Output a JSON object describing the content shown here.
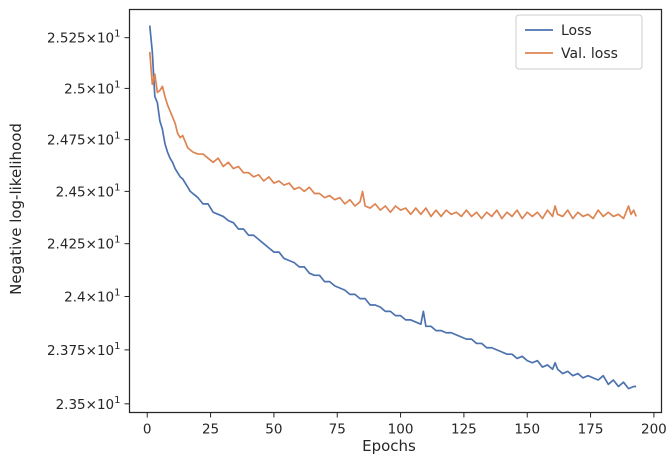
{
  "chart_data": {
    "type": "line",
    "title": "",
    "xlabel": "Epochs",
    "ylabel": "Negative log-likelihood",
    "xlim": [
      -7,
      203
    ],
    "ylim": [
      23.46,
      25.39
    ],
    "yscale": "log",
    "grid": false,
    "legend_position": "top-right",
    "xticks": [
      0,
      25,
      50,
      75,
      100,
      125,
      150,
      175,
      200
    ],
    "xtick_labels": [
      "0",
      "25",
      "50",
      "75",
      "100",
      "125",
      "150",
      "175",
      "200"
    ],
    "yticks": [
      23.5,
      23.75,
      24.0,
      24.25,
      24.5,
      24.75,
      25.0,
      25.25
    ],
    "ytick_labels": [
      {
        "mantissa": "2.35",
        "base": "10",
        "exp": "1"
      },
      {
        "mantissa": "2.375",
        "base": "10",
        "exp": "1"
      },
      {
        "mantissa": "2.4",
        "base": "10",
        "exp": "1"
      },
      {
        "mantissa": "2.425",
        "base": "10",
        "exp": "1"
      },
      {
        "mantissa": "2.45",
        "base": "10",
        "exp": "1"
      },
      {
        "mantissa": "2.475",
        "base": "10",
        "exp": "1"
      },
      {
        "mantissa": "2.5",
        "base": "10",
        "exp": "1"
      },
      {
        "mantissa": "2.525",
        "base": "10",
        "exp": "1"
      }
    ],
    "series": [
      {
        "name": "Loss",
        "color": "#4c72b0",
        "x": [
          1,
          2,
          3,
          4,
          5,
          6,
          7,
          8,
          9,
          10,
          11,
          12,
          13,
          14,
          15,
          16,
          17,
          18,
          19,
          20,
          22,
          24,
          26,
          28,
          30,
          32,
          34,
          36,
          38,
          40,
          42,
          44,
          46,
          48,
          50,
          52,
          54,
          56,
          58,
          60,
          62,
          64,
          66,
          68,
          70,
          72,
          74,
          76,
          78,
          80,
          82,
          84,
          86,
          88,
          90,
          92,
          94,
          96,
          98,
          100,
          102,
          104,
          106,
          108,
          109,
          110,
          112,
          114,
          116,
          118,
          120,
          122,
          124,
          126,
          128,
          130,
          132,
          134,
          136,
          138,
          140,
          142,
          144,
          146,
          148,
          150,
          152,
          154,
          156,
          158,
          160,
          161,
          162,
          164,
          166,
          168,
          170,
          172,
          174,
          176,
          178,
          180,
          182,
          184,
          186,
          188,
          190,
          192,
          193
        ],
        "y": [
          25.31,
          25.18,
          24.96,
          24.93,
          24.84,
          24.8,
          24.73,
          24.69,
          24.66,
          24.64,
          24.61,
          24.59,
          24.57,
          24.56,
          24.54,
          24.52,
          24.5,
          24.49,
          24.48,
          24.47,
          24.44,
          24.44,
          24.4,
          24.39,
          24.38,
          24.36,
          24.35,
          24.32,
          24.32,
          24.29,
          24.29,
          24.27,
          24.25,
          24.23,
          24.21,
          24.21,
          24.18,
          24.17,
          24.16,
          24.14,
          24.14,
          24.11,
          24.1,
          24.1,
          24.07,
          24.07,
          24.05,
          24.04,
          24.03,
          24.01,
          24.01,
          23.99,
          23.99,
          23.96,
          23.96,
          23.95,
          23.93,
          23.93,
          23.91,
          23.91,
          23.89,
          23.89,
          23.88,
          23.87,
          23.93,
          23.86,
          23.86,
          23.84,
          23.84,
          23.83,
          23.83,
          23.82,
          23.81,
          23.8,
          23.8,
          23.78,
          23.78,
          23.76,
          23.76,
          23.75,
          23.74,
          23.73,
          23.73,
          23.71,
          23.72,
          23.7,
          23.69,
          23.7,
          23.67,
          23.68,
          23.66,
          23.69,
          23.66,
          23.64,
          23.65,
          23.63,
          23.64,
          23.62,
          23.63,
          23.62,
          23.61,
          23.63,
          23.59,
          23.61,
          23.58,
          23.6,
          23.57,
          23.58,
          23.58
        ]
      },
      {
        "name": "Val. loss",
        "color": "#dd8452",
        "x": [
          1,
          2,
          3,
          4,
          5,
          6,
          7,
          8,
          9,
          10,
          11,
          12,
          13,
          14,
          15,
          16,
          18,
          20,
          22,
          24,
          26,
          28,
          30,
          32,
          34,
          36,
          38,
          40,
          42,
          44,
          46,
          48,
          50,
          52,
          54,
          56,
          58,
          60,
          62,
          64,
          66,
          68,
          70,
          72,
          74,
          76,
          78,
          80,
          82,
          84,
          85,
          86,
          88,
          90,
          92,
          94,
          96,
          98,
          100,
          102,
          104,
          106,
          108,
          110,
          112,
          114,
          116,
          118,
          120,
          122,
          124,
          126,
          128,
          130,
          132,
          134,
          136,
          138,
          140,
          142,
          144,
          146,
          148,
          150,
          152,
          154,
          156,
          158,
          160,
          161,
          162,
          164,
          166,
          168,
          170,
          172,
          174,
          176,
          178,
          180,
          182,
          184,
          186,
          188,
          190,
          191,
          192,
          193
        ],
        "y": [
          25.18,
          25.02,
          25.07,
          24.98,
          24.99,
          25.01,
          24.96,
          24.92,
          24.89,
          24.86,
          24.83,
          24.78,
          24.76,
          24.77,
          24.74,
          24.71,
          24.69,
          24.68,
          24.68,
          24.66,
          24.64,
          24.66,
          24.62,
          24.64,
          24.61,
          24.62,
          24.59,
          24.59,
          24.57,
          24.58,
          24.55,
          24.57,
          24.54,
          24.55,
          24.53,
          24.54,
          24.51,
          24.52,
          24.5,
          24.52,
          24.49,
          24.49,
          24.47,
          24.48,
          24.46,
          24.47,
          24.44,
          24.46,
          24.43,
          24.45,
          24.5,
          24.43,
          24.42,
          24.44,
          24.41,
          24.43,
          24.4,
          24.43,
          24.41,
          24.42,
          24.39,
          24.42,
          24.39,
          24.42,
          24.38,
          24.41,
          24.38,
          24.41,
          24.39,
          24.4,
          24.38,
          24.41,
          24.38,
          24.4,
          24.37,
          24.4,
          24.38,
          24.41,
          24.37,
          24.4,
          24.38,
          24.41,
          24.37,
          24.4,
          24.38,
          24.4,
          24.37,
          24.41,
          24.38,
          24.43,
          24.39,
          24.38,
          24.41,
          24.37,
          24.4,
          24.38,
          24.39,
          24.37,
          24.41,
          24.38,
          24.4,
          24.38,
          24.39,
          24.37,
          24.43,
          24.39,
          24.41,
          24.38
        ]
      }
    ]
  }
}
